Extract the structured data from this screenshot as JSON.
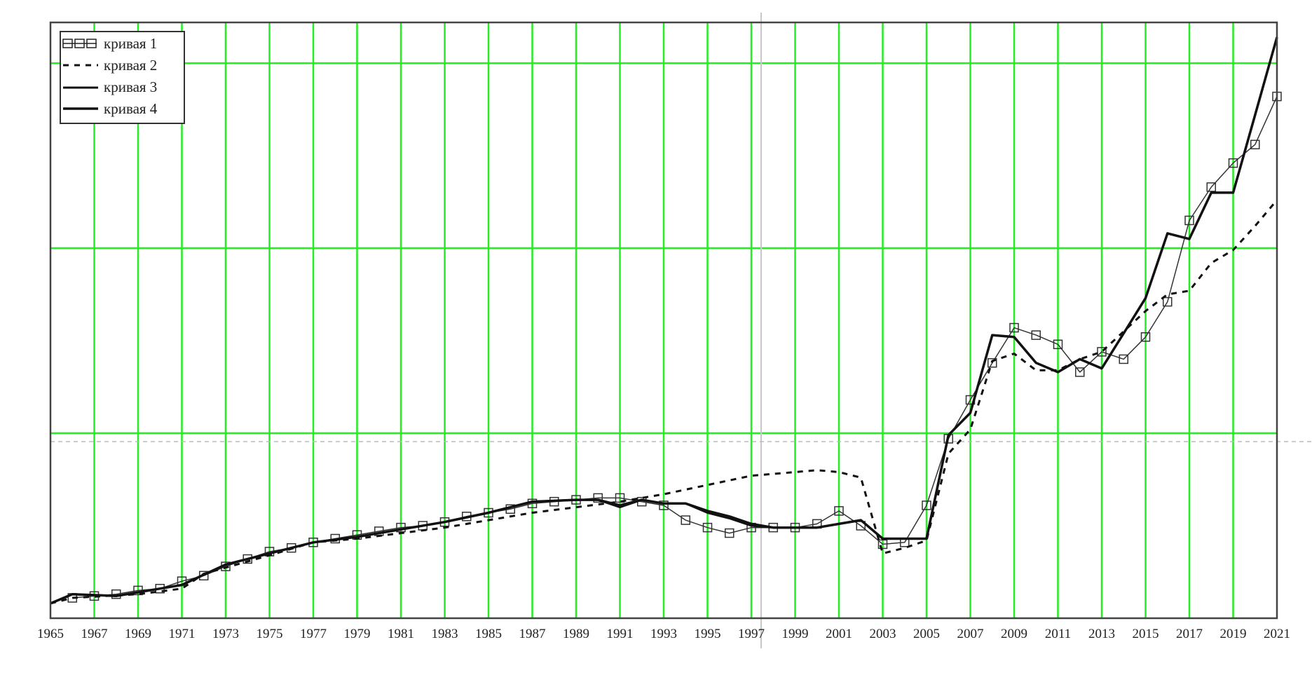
{
  "chart_data": {
    "type": "line",
    "title": "",
    "xlabel": "",
    "ylabel": "",
    "xlim": [
      1965,
      2021
    ],
    "ylim": [
      0,
      3.22
    ],
    "x_ticks": [
      "1965",
      "1967",
      "1969",
      "1971",
      "1973",
      "1975",
      "1977",
      "1979",
      "1981",
      "1983",
      "1985",
      "1987",
      "1989",
      "1991",
      "1993",
      "1995",
      "1997",
      "1999",
      "2001",
      "2003",
      "2005",
      "2007",
      "2009",
      "2011",
      "2013",
      "2015",
      "2017",
      "2019",
      "2021"
    ],
    "y_grid": [
      1,
      2,
      3
    ],
    "grid": true,
    "grid_color": "#22ee22",
    "legend_position": "top-left",
    "series": [
      {
        "name": "кривая 1",
        "style": "thin-with-squares",
        "x": [
          1966,
          1967,
          1968,
          1969,
          1970,
          1971,
          1972,
          1973,
          1974,
          1975,
          1976,
          1977,
          1978,
          1979,
          1980,
          1981,
          1982,
          1983,
          1984,
          1985,
          1986,
          1987,
          1988,
          1989,
          1990,
          1991,
          1992,
          1993,
          1994,
          1995,
          1996,
          1997,
          1998,
          1999,
          2000,
          2001,
          2002,
          2003,
          2004,
          2005,
          2006,
          2007,
          2008,
          2009,
          2010,
          2011,
          2012,
          2013,
          2014,
          2015,
          2016,
          2017,
          2018,
          2019,
          2020,
          2021
        ],
        "y": [
          0.11,
          0.12,
          0.13,
          0.15,
          0.16,
          0.2,
          0.23,
          0.28,
          0.32,
          0.36,
          0.38,
          0.41,
          0.43,
          0.45,
          0.47,
          0.49,
          0.5,
          0.52,
          0.55,
          0.57,
          0.59,
          0.62,
          0.63,
          0.64,
          0.65,
          0.65,
          0.63,
          0.61,
          0.53,
          0.49,
          0.46,
          0.49,
          0.49,
          0.49,
          0.51,
          0.58,
          0.5,
          0.4,
          0.41,
          0.61,
          0.97,
          1.18,
          1.38,
          1.57,
          1.53,
          1.48,
          1.33,
          1.44,
          1.4,
          1.52,
          1.71,
          2.15,
          2.33,
          2.46,
          2.56,
          2.82
        ]
      },
      {
        "name": "кривая 2",
        "style": "dashed",
        "x": [
          1965,
          1966,
          1969,
          1971,
          1972,
          1975,
          1977,
          1979,
          1981,
          1983,
          1985,
          1987,
          1989,
          1991,
          1993,
          1995,
          1997,
          1999,
          2000,
          2001,
          2002,
          2003,
          2004,
          2005,
          2006,
          2007,
          2008,
          2009,
          2010,
          2011,
          2012,
          2013,
          2014,
          2015,
          2016,
          2017,
          2018,
          2019,
          2020,
          2021
        ],
        "y": [
          0.08,
          0.11,
          0.13,
          0.16,
          0.24,
          0.34,
          0.41,
          0.43,
          0.46,
          0.49,
          0.53,
          0.57,
          0.6,
          0.63,
          0.67,
          0.72,
          0.77,
          0.79,
          0.8,
          0.79,
          0.76,
          0.35,
          0.38,
          0.42,
          0.89,
          1.02,
          1.39,
          1.43,
          1.34,
          1.34,
          1.4,
          1.44,
          1.55,
          1.66,
          1.75,
          1.77,
          1.92,
          1.99,
          2.12,
          2.26
        ]
      },
      {
        "name": "кривая 3",
        "style": "thick-solid",
        "x": [
          1965,
          1966,
          1968,
          1971,
          1973,
          1975,
          1977,
          1979,
          1981,
          1983,
          1985,
          1987,
          1989,
          1990,
          1991,
          1992,
          1993,
          1994,
          1995,
          1996,
          1997,
          1998,
          1999,
          2000,
          2001,
          2002,
          2003,
          2004,
          2005,
          2006,
          2007,
          2008,
          2009,
          2010,
          2011,
          2012,
          2013,
          2014,
          2015,
          2016,
          2017,
          2018,
          2019,
          2020,
          2021
        ],
        "y": [
          0.08,
          0.13,
          0.12,
          0.18,
          0.29,
          0.35,
          0.41,
          0.44,
          0.48,
          0.52,
          0.57,
          0.63,
          0.64,
          0.64,
          0.6,
          0.64,
          0.62,
          0.62,
          0.57,
          0.54,
          0.5,
          0.49,
          0.49,
          0.49,
          0.51,
          0.53,
          0.43,
          0.43,
          0.43,
          0.99,
          1.11,
          1.53,
          1.52,
          1.38,
          1.33,
          1.4,
          1.35,
          1.54,
          1.73,
          2.08,
          2.05,
          2.3,
          2.3,
          2.72,
          3.14
        ]
      },
      {
        "name": "кривая 4",
        "style": "thick-solid",
        "x": [
          1965,
          1966,
          1968,
          1971,
          1973,
          1975,
          1977,
          1979,
          1981,
          1983,
          1985,
          1987,
          1989,
          1990,
          1991,
          1992,
          1993,
          1994,
          1995,
          1996,
          1997,
          1998,
          1999,
          2000,
          2001,
          2002,
          2003,
          2004,
          2005,
          2006,
          2007,
          2008,
          2009,
          2010,
          2011,
          2012,
          2013,
          2014,
          2015,
          2016,
          2017,
          2018,
          2019,
          2020,
          2021
        ],
        "y": [
          0.08,
          0.13,
          0.12,
          0.18,
          0.29,
          0.35,
          0.41,
          0.44,
          0.48,
          0.52,
          0.57,
          0.63,
          0.64,
          0.64,
          0.61,
          0.64,
          0.62,
          0.62,
          0.58,
          0.55,
          0.51,
          0.49,
          0.49,
          0.49,
          0.51,
          0.53,
          0.43,
          0.43,
          0.43,
          0.99,
          1.11,
          1.53,
          1.52,
          1.38,
          1.33,
          1.4,
          1.35,
          1.54,
          1.73,
          2.08,
          2.05,
          2.3,
          2.3,
          2.72,
          3.14
        ]
      }
    ]
  }
}
